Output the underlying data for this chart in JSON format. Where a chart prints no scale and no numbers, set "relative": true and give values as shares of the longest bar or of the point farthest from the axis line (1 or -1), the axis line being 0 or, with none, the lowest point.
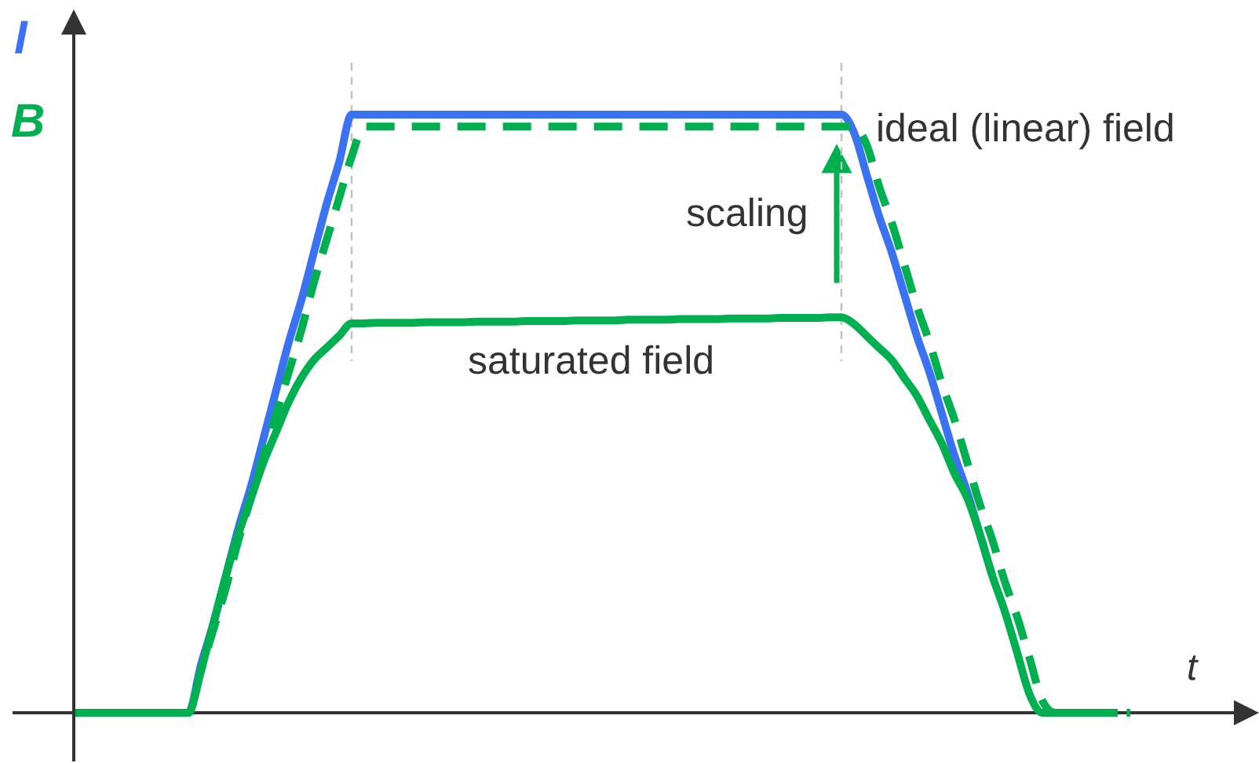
{
  "chart_data": {
    "type": "line",
    "relative": true,
    "xlabel": "t",
    "ylabel": "B",
    "categories": [
      null,
      null,
      null,
      null,
      null,
      null,
      null,
      null,
      null,
      null,
      null,
      null,
      null,
      null,
      null,
      null,
      null,
      null,
      null,
      null,
      null,
      null,
      null,
      null,
      null,
      null,
      null,
      null,
      null,
      null,
      null,
      null,
      null,
      null,
      null,
      null,
      null,
      null,
      null,
      null,
      null,
      null,
      null,
      null,
      null,
      null,
      null,
      null,
      null,
      null,
      null,
      null,
      null,
      null,
      null,
      null,
      null,
      null,
      null,
      null,
      null,
      null,
      null,
      null,
      null,
      null,
      null,
      null,
      null,
      null,
      null,
      null,
      null,
      null,
      null,
      null,
      null,
      null,
      null,
      null,
      null,
      null,
      null,
      null,
      null
    ],
    "series": [
      {
        "name": "I",
        "color": "#3a72f2",
        "values": [
          null,
          null,
          null,
          null,
          null,
          null,
          null,
          null,
          0,
          0,
          0.08,
          0.15,
          0.23,
          0.31,
          0.38,
          0.46,
          0.54,
          0.62,
          0.69,
          0.77,
          0.85,
          0.92,
          1,
          1,
          1,
          1,
          1,
          1,
          1,
          1,
          1,
          1,
          1,
          1,
          1,
          1,
          1,
          1,
          1,
          1,
          1,
          1,
          1,
          1,
          1,
          1,
          1,
          1,
          1,
          1,
          1,
          1,
          1,
          1,
          1,
          1,
          1,
          1,
          1,
          1,
          1,
          1,
          0.97,
          0.9,
          0.83,
          0.77,
          0.7,
          0.63,
          0.57,
          0.5,
          0.43,
          0.37,
          0.3,
          0.23,
          null,
          null,
          null,
          null,
          null,
          null,
          null,
          null,
          null,
          null,
          null
        ]
      },
      {
        "name": "saturated field",
        "color": "#00b050",
        "values": [
          0,
          0,
          0,
          0,
          0,
          0,
          0,
          0,
          0,
          0,
          0.07,
          0.15,
          0.23,
          0.3,
          0.36,
          0.42,
          0.47,
          0.52,
          0.56,
          0.59,
          0.61,
          0.63,
          0.651,
          0.651,
          0.652,
          0.652,
          0.652,
          0.652,
          0.653,
          0.653,
          0.653,
          0.653,
          0.654,
          0.654,
          0.654,
          0.654,
          0.655,
          0.655,
          0.655,
          0.655,
          0.656,
          0.656,
          0.656,
          0.656,
          0.657,
          0.657,
          0.657,
          0.657,
          0.658,
          0.658,
          0.658,
          0.658,
          0.659,
          0.659,
          0.659,
          0.659,
          0.66,
          0.66,
          0.66,
          0.66,
          0.661,
          0.661,
          0.65,
          0.63,
          0.61,
          0.59,
          0.56,
          0.53,
          0.49,
          0.45,
          0.4,
          0.36,
          0.3,
          0.23,
          0.17,
          0.1,
          0.03,
          0,
          0,
          0,
          0,
          0,
          0,
          0,
          null
        ]
      },
      {
        "name": "ideal (linear) field",
        "color": "#00b050",
        "line_style": "dashed",
        "values": [
          0,
          0,
          0,
          0,
          0,
          0,
          0,
          0,
          0,
          0,
          0.07,
          0.14,
          0.21,
          0.29,
          0.36,
          0.43,
          0.5,
          0.57,
          0.64,
          0.72,
          0.79,
          0.86,
          0.93,
          0.98,
          0.98,
          0.98,
          0.98,
          0.98,
          0.98,
          0.98,
          0.98,
          0.98,
          0.98,
          0.98,
          0.98,
          0.98,
          0.98,
          0.98,
          0.98,
          0.98,
          0.98,
          0.98,
          0.98,
          0.98,
          0.98,
          0.98,
          0.98,
          0.98,
          0.98,
          0.98,
          0.98,
          0.98,
          0.98,
          0.98,
          0.98,
          0.98,
          0.98,
          0.98,
          0.98,
          0.98,
          0.98,
          0.98,
          0.98,
          0.95,
          0.88,
          0.82,
          0.75,
          0.68,
          0.62,
          0.55,
          0.49,
          0.42,
          0.35,
          0.29,
          0.22,
          0.16,
          0.09,
          0.02,
          0,
          0,
          0,
          0,
          0,
          0,
          0
        ]
      }
    ],
    "annotations": [
      "scaling"
    ]
  }
}
